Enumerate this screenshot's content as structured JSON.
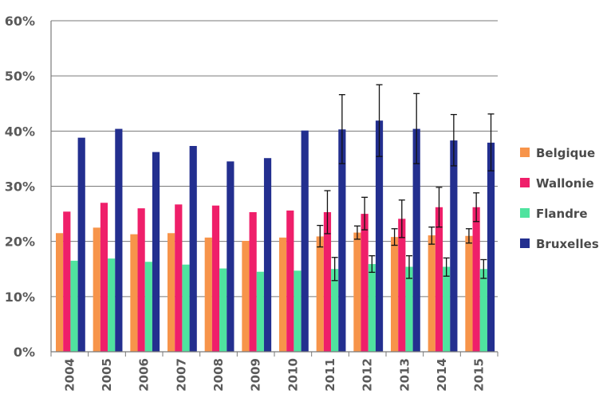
{
  "chart_data": {
    "type": "bar",
    "title": "",
    "xlabel": "",
    "ylabel": "",
    "ylim": [
      0,
      60
    ],
    "y_ticks": [
      "0%",
      "10%",
      "20%",
      "30%",
      "40%",
      "50%",
      "60%"
    ],
    "grid": true,
    "legend_position": "right",
    "categories": [
      "2004",
      "2005",
      "2006",
      "2007",
      "2008",
      "2009",
      "2010",
      "2011",
      "2012",
      "2013",
      "2014",
      "2015"
    ],
    "series": [
      {
        "name": "Belgique",
        "color": "#f7944a",
        "values": [
          21.5,
          22.5,
          21.3,
          21.5,
          20.7,
          20.1,
          20.7,
          20.9,
          21.6,
          20.8,
          21.1,
          21.0
        ],
        "error_low": [
          null,
          null,
          null,
          null,
          null,
          null,
          null,
          19.0,
          20.4,
          19.3,
          19.5,
          19.7
        ],
        "error_high": [
          null,
          null,
          null,
          null,
          null,
          null,
          null,
          22.9,
          22.8,
          22.3,
          22.6,
          22.3
        ]
      },
      {
        "name": "Wallonie",
        "color": "#ef1f6a",
        "values": [
          25.4,
          27.0,
          26.0,
          26.7,
          26.5,
          25.3,
          25.6,
          25.3,
          25.0,
          24.1,
          26.2,
          26.2
        ],
        "error_low": [
          null,
          null,
          null,
          null,
          null,
          null,
          null,
          21.4,
          22.1,
          20.7,
          22.6,
          23.6
        ],
        "error_high": [
          null,
          null,
          null,
          null,
          null,
          null,
          null,
          29.2,
          28.0,
          27.5,
          29.8,
          28.8
        ]
      },
      {
        "name": "Flandre",
        "color": "#4fe39f",
        "values": [
          16.5,
          16.9,
          16.3,
          15.8,
          15.1,
          14.5,
          14.7,
          15.0,
          15.9,
          15.4,
          15.4,
          15.0
        ],
        "error_low": [
          null,
          null,
          null,
          null,
          null,
          null,
          null,
          12.9,
          14.4,
          13.3,
          13.7,
          13.3
        ],
        "error_high": [
          null,
          null,
          null,
          null,
          null,
          null,
          null,
          17.1,
          17.4,
          17.4,
          17.0,
          16.7
        ]
      },
      {
        "name": "Bruxelles",
        "color": "#232f8f",
        "values": [
          38.8,
          40.4,
          36.2,
          37.3,
          34.5,
          35.1,
          40.1,
          40.3,
          41.9,
          40.4,
          38.3,
          37.9
        ],
        "error_low": [
          null,
          null,
          null,
          null,
          null,
          null,
          null,
          34.1,
          35.4,
          34.1,
          33.7,
          32.8
        ],
        "error_high": [
          null,
          null,
          null,
          null,
          null,
          null,
          null,
          46.6,
          48.4,
          46.8,
          43.0,
          43.1
        ]
      }
    ]
  }
}
